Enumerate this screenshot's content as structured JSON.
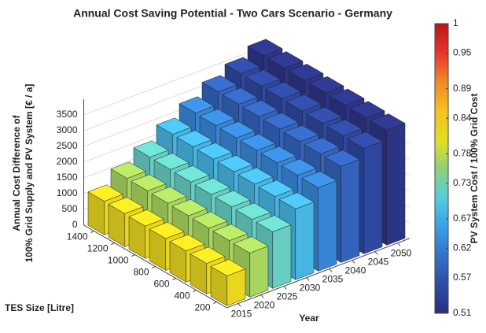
{
  "chart_data": {
    "type": "bar3d",
    "title": "Annual Cost Saving Potential - Two Cars Scenario - Germany",
    "xlabel": "Year",
    "ylabel": "TES Size [Litre]",
    "zlabel": [
      "Annual Cost Difference of",
      "100% Grid Supply and PV System [€ / a]"
    ],
    "colorbar_label": "PV System Cost / 100% Grid Cost",
    "x": [
      2015,
      2020,
      2025,
      2030,
      2035,
      2040,
      2045,
      2050
    ],
    "y": [
      200,
      400,
      600,
      800,
      1000,
      1200,
      1400
    ],
    "values": [
      [
        950,
        970,
        990,
        1010,
        1030,
        1050,
        1070
      ],
      [
        1400,
        1420,
        1440,
        1460,
        1480,
        1500,
        1520
      ],
      [
        1800,
        1820,
        1840,
        1860,
        1880,
        1900,
        1920
      ],
      [
        2250,
        2270,
        2290,
        2310,
        2330,
        2350,
        2370
      ],
      [
        2650,
        2670,
        2690,
        2710,
        2730,
        2750,
        2770
      ],
      [
        3050,
        3070,
        3090,
        3110,
        3130,
        3150,
        3170
      ],
      [
        3350,
        3370,
        3390,
        3410,
        3430,
        3450,
        3470
      ],
      [
        3650,
        3670,
        3690,
        3710,
        3730,
        3750,
        3770
      ]
    ],
    "color_values": [
      0.82,
      0.77,
      0.72,
      0.68,
      0.63,
      0.59,
      0.55,
      0.52
    ],
    "zlim": [
      0,
      4000
    ],
    "zticks": [
      0,
      500,
      1000,
      1500,
      2000,
      2500,
      3000,
      3500
    ],
    "clim": [
      0.51,
      1
    ],
    "cticks": [
      0.51,
      0.57,
      0.62,
      0.67,
      0.73,
      0.78,
      0.84,
      0.89,
      0.95,
      1
    ],
    "colormap": [
      "#2b2d7e",
      "#2f4da6",
      "#3570c8",
      "#3aa0e4",
      "#55cde0",
      "#8fd07a",
      "#e2e020",
      "#f4c21e",
      "#f08a2a",
      "#e8362e",
      "#b81818"
    ]
  }
}
